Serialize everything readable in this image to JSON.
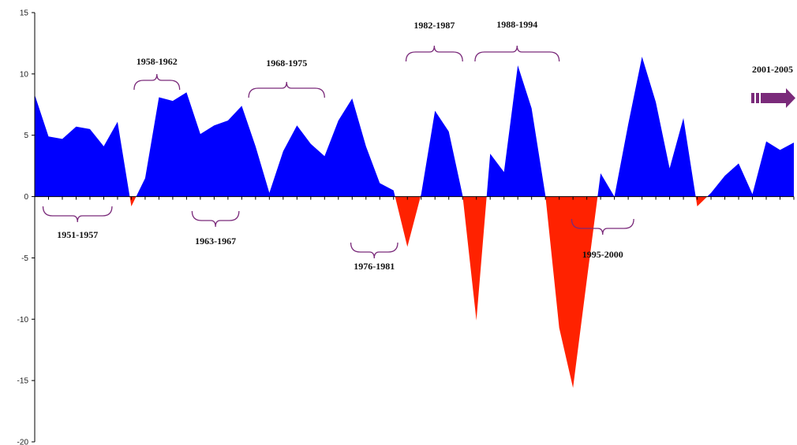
{
  "chart_data": {
    "type": "area",
    "title": "",
    "xlabel": "",
    "ylabel": "",
    "ylim": [
      -20,
      15
    ],
    "yticks": [
      15,
      10,
      5,
      0,
      -5,
      -10,
      -15,
      -20
    ],
    "ytick_labels": [
      "15",
      "10",
      "5",
      "0",
      "-5",
      "-10",
      "-15",
      "-20"
    ],
    "grid": false,
    "legend": "none",
    "x_start_year": 1950,
    "x_end_year": 2005,
    "series": [
      {
        "values": [
          8.3,
          4.9,
          4.7,
          5.7,
          5.5,
          4.1,
          6.1,
          -0.8,
          1.5,
          8.1,
          7.8,
          8.5,
          5.1,
          5.8,
          6.2,
          7.4,
          4.1,
          0.3,
          3.7,
          5.8,
          4.3,
          3.3,
          6.2,
          8.0,
          4.1,
          1.1,
          0.5,
          -4.1,
          0.2,
          7.0,
          5.3,
          0.1,
          -10.1,
          3.5,
          2.0,
          10.7,
          7.2,
          0.1,
          -10.7,
          -15.6,
          -6.8,
          1.9,
          0.0,
          5.9,
          11.4,
          7.7,
          2.3,
          6.4,
          -0.8,
          0.3,
          1.7,
          2.7,
          0.2,
          4.5,
          3.8,
          4.4
        ]
      }
    ],
    "colors": {
      "positive": "#0000ff",
      "negative": "#ff2200",
      "brace": "#7a2a7a",
      "arrow": "#7a2a7a"
    },
    "periods": [
      {
        "label": "1951-1957",
        "placement": "below",
        "from": 1950.6,
        "to": 1955.6
      },
      {
        "label": "1958-1962",
        "placement": "above",
        "from": 1957.2,
        "to": 1960.5
      },
      {
        "label": "1963-1967",
        "placement": "below",
        "from": 1961.4,
        "to": 1964.8
      },
      {
        "label": "1968-1975",
        "placement": "above",
        "from": 1965.5,
        "to": 1971.0
      },
      {
        "label": "1976-1981",
        "placement": "below",
        "from": 1972.9,
        "to": 1976.3
      },
      {
        "label": "1982-1987",
        "placement": "above",
        "from": 1976.9,
        "to": 1981.0
      },
      {
        "label": "1988-1994",
        "placement": "above",
        "from": 1981.9,
        "to": 1988.0
      },
      {
        "label": "1995-2000",
        "placement": "below",
        "from": 1988.9,
        "to": 1993.4
      }
    ],
    "arrow_label": "2001-2005"
  }
}
